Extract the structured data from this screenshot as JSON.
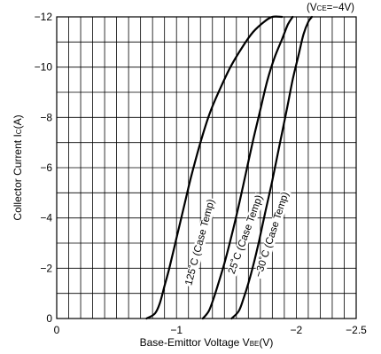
{
  "chart_data": {
    "type": "line",
    "condition": {
      "prefix": "(V",
      "sub": "CE",
      "suffix": "=−4V)"
    },
    "xlabel": {
      "prefix": "Base-Emittor Voltage V",
      "sub": "BE",
      "suffix": "(V)"
    },
    "ylabel": {
      "prefix": "Collector Current I",
      "sub": "C",
      "suffix": "(A)"
    },
    "xlim": [
      0,
      -2.5
    ],
    "ylim": [
      0,
      -12
    ],
    "x_minor_step": -0.1,
    "y_minor_step": -1,
    "grid": true,
    "x_ticks": [
      {
        "value": 0,
        "label": "0"
      },
      {
        "value": -1,
        "label": "−1"
      },
      {
        "value": -2,
        "label": "−2"
      },
      {
        "value": -2.5,
        "label": "−2.5"
      }
    ],
    "y_ticks": [
      {
        "value": 0,
        "label": "0"
      },
      {
        "value": -2,
        "label": "−2"
      },
      {
        "value": -4,
        "label": "−4"
      },
      {
        "value": -6,
        "label": "−6"
      },
      {
        "value": -8,
        "label": "−8"
      },
      {
        "value": -10,
        "label": "−10"
      },
      {
        "value": -12,
        "label": "−12"
      }
    ],
    "series": [
      {
        "name": "125˚C (Case Temp)",
        "x": [
          -0.75,
          -0.82,
          -0.86,
          -0.9,
          -0.94,
          -1.0,
          -1.06,
          -1.12,
          -1.2,
          -1.28,
          -1.37,
          -1.45,
          -1.55,
          -1.64,
          -1.73,
          -1.8,
          -1.88
        ],
        "y": [
          0,
          -0.2,
          -0.6,
          -1.3,
          -2.0,
          -3.2,
          -4.4,
          -5.6,
          -7.0,
          -8.2,
          -9.2,
          -10.0,
          -10.8,
          -11.4,
          -11.8,
          -12.0,
          -12.0
        ]
      },
      {
        "name": "25˚C (Case Temp)",
        "x": [
          -1.22,
          -1.27,
          -1.31,
          -1.35,
          -1.4,
          -1.46,
          -1.52,
          -1.58,
          -1.64,
          -1.7,
          -1.76,
          -1.82,
          -1.88,
          -1.93,
          -1.97
        ],
        "y": [
          0,
          -0.3,
          -0.8,
          -1.4,
          -2.2,
          -3.3,
          -4.5,
          -5.8,
          -7.1,
          -8.3,
          -9.5,
          -10.4,
          -11.1,
          -11.7,
          -12.0
        ]
      },
      {
        "name": "−30˚C (Case Temp)",
        "x": [
          -1.46,
          -1.52,
          -1.56,
          -1.6,
          -1.64,
          -1.69,
          -1.74,
          -1.8,
          -1.86,
          -1.92,
          -1.97,
          -2.02,
          -2.06,
          -2.1,
          -2.13
        ],
        "y": [
          0,
          -0.3,
          -0.8,
          -1.4,
          -2.1,
          -3.1,
          -4.2,
          -5.5,
          -6.9,
          -8.3,
          -9.5,
          -10.5,
          -11.3,
          -11.8,
          -12.0
        ]
      }
    ],
    "curve_labels": [
      {
        "text": "125˚C (Case Temp)",
        "x": -1.22,
        "y": -3.0,
        "angle": -75
      },
      {
        "text": "25˚C (Case Temp)",
        "x": -1.6,
        "y": -3.3,
        "angle": -70
      },
      {
        "text": "−30˚C (Case Temp)",
        "x": -1.82,
        "y": -3.3,
        "angle": -72
      }
    ]
  }
}
